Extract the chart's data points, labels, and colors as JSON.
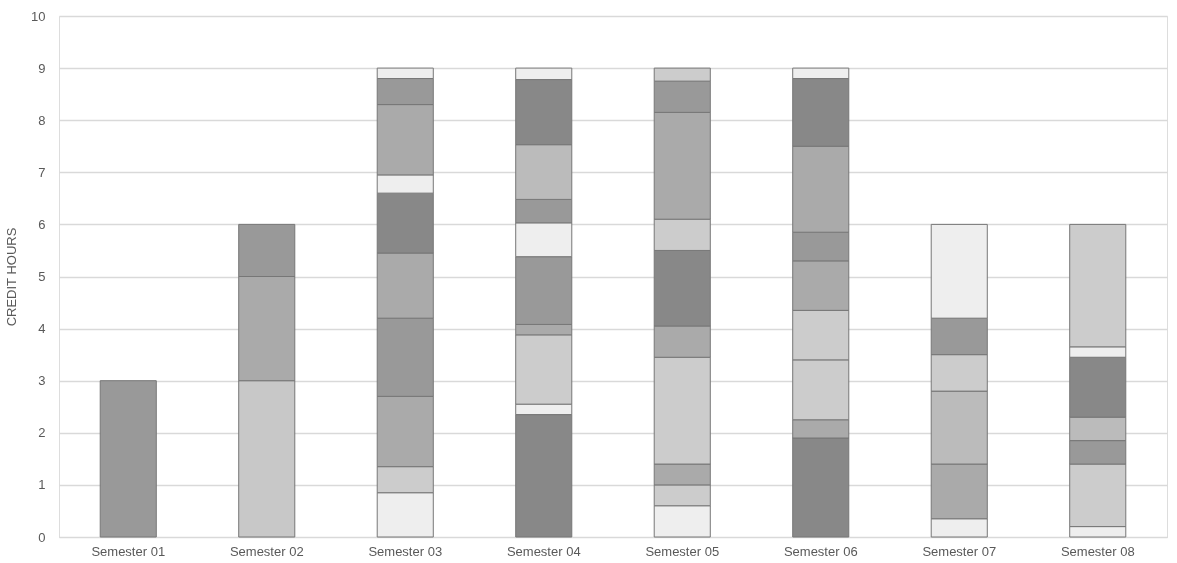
{
  "chart_data": {
    "type": "bar",
    "stacked": true,
    "ylabel": "CREDIT HOURS",
    "categories": [
      "Semester 01",
      "Semester 02",
      "Semester 03",
      "Semester 04",
      "Semester 05",
      "Semester 06",
      "Semester 07",
      "Semester 08"
    ],
    "series": [
      {
        "values": [
          3,
          3,
          0.85,
          2.35,
          0.6,
          1.9,
          0.35,
          0.2
        ],
        "colors": [
          "#999999",
          "#c8c8c8",
          "#eeeeee",
          "#888888",
          "#eeeeee",
          "#888888",
          "#eeeeee",
          "#eeeeee"
        ]
      },
      {
        "values": [
          null,
          2,
          0.5,
          0.2,
          0.4,
          0.35,
          1.05,
          1.2
        ],
        "colors": [
          null,
          "#aaaaaa",
          "#cccccc",
          "#eeeeee",
          "#cccccc",
          "#aaaaaa",
          "#aaaaaa",
          "#cccccc"
        ]
      },
      {
        "values": [
          null,
          1,
          1.35,
          1.33,
          0.4,
          1.15,
          1.4,
          0.45
        ],
        "colors": [
          null,
          "#999999",
          "#aaaaaa",
          "#cccccc",
          "#aaaaaa",
          "#cccccc",
          "#bbbbbb",
          "#999999"
        ]
      },
      {
        "values": [
          null,
          null,
          1.5,
          0.2,
          2.05,
          0.95,
          0.7,
          0.45
        ],
        "colors": [
          null,
          null,
          "#999999",
          "#aaaaaa",
          "#cccccc",
          "#cccccc",
          "#cccccc",
          "#bbbbbb"
        ]
      },
      {
        "values": [
          null,
          null,
          1.25,
          1.3,
          0.6,
          0.95,
          0.7,
          1.15
        ],
        "colors": [
          null,
          null,
          "#aaaaaa",
          "#999999",
          "#aaaaaa",
          "#aaaaaa",
          "#999999",
          "#888888"
        ]
      },
      {
        "values": [
          null,
          null,
          1.15,
          0.65,
          1.45,
          0.55,
          1.8,
          0.2
        ],
        "colors": [
          null,
          null,
          "#888888",
          "#eeeeee",
          "#888888",
          "#999999",
          "#eeeeee",
          "#eeeeee"
        ]
      },
      {
        "values": [
          null,
          null,
          0.35,
          0.45,
          0.6,
          1.65,
          null,
          2.35
        ],
        "colors": [
          null,
          null,
          "#eeeeee",
          "#999999",
          "#cccccc",
          "#aaaaaa",
          null,
          "#cccccc"
        ]
      },
      {
        "values": [
          null,
          null,
          1.35,
          1.05,
          2.05,
          1.3,
          null,
          null
        ],
        "colors": [
          null,
          null,
          "#aaaaaa",
          "#bbbbbb",
          "#aaaaaa",
          "#888888",
          null,
          null
        ]
      },
      {
        "values": [
          null,
          null,
          0.5,
          1.25,
          0.6,
          0.2,
          null,
          null
        ],
        "colors": [
          null,
          null,
          "#999999",
          "#888888",
          "#999999",
          "#eeeeee",
          null,
          null
        ]
      },
      {
        "values": [
          null,
          null,
          0.2,
          0.22,
          0.25,
          null,
          null,
          null
        ],
        "colors": [
          null,
          null,
          "#eeeeee",
          "#eeeeee",
          "#cccccc",
          null,
          null,
          null
        ]
      }
    ],
    "ylim": [
      0,
      10
    ],
    "yticks": [
      0,
      1,
      2,
      3,
      4,
      5,
      6,
      7,
      8,
      9,
      10
    ],
    "grid": "y"
  }
}
